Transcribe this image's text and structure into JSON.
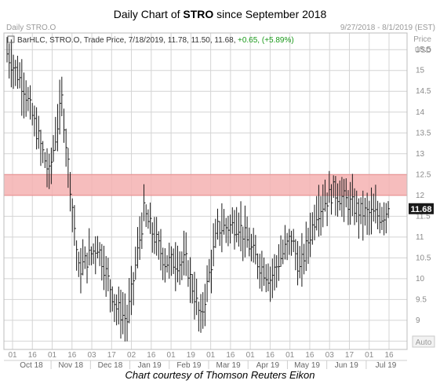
{
  "title": {
    "prefix": "Daily Chart of ",
    "symbol": "STRO",
    "suffix": " since September 2018"
  },
  "caption": "Chart courtesy of Thomson Reuters Eikon",
  "header": {
    "instrument": "Daily STRO.O",
    "date_range": "9/27/2018 - 8/1/2019 (EST)",
    "price_label": "Price",
    "currency_label": "USD",
    "auto_label": "Auto"
  },
  "legend": {
    "text": "BarHLC, STRO.O, Trade Price, 7/18/2019, 11.78, 11.50, 11.68,",
    "change": "+0.65, (+5.89%)"
  },
  "last_price": "11.68",
  "colors": {
    "bars": "#1a1a1a",
    "band": "#f4b2b2",
    "band_edge": "#e88d8d",
    "grid": "#d4d4d4",
    "last_price_bg": "#1a1a1a",
    "last_price_text": "#ffffff",
    "change_text": "#1a9a1a"
  },
  "chart_data": {
    "type": "bar",
    "style": "HLC bars",
    "ylim": [
      8.3,
      15.9
    ],
    "y_ticks": [
      "8.5",
      "9",
      "9.5",
      "10",
      "10.5",
      "11",
      "11.5",
      "12",
      "12.5",
      "13",
      "13.5",
      "14",
      "14.5",
      "15",
      "15.5"
    ],
    "day_ticks": [
      "01",
      "16",
      "01",
      "16",
      "03",
      "17",
      "02",
      "16",
      "01",
      "19",
      "01",
      "16",
      "01",
      "16",
      "01",
      "16",
      "03",
      "17",
      "01",
      "16"
    ],
    "months": [
      "Oct 18",
      "Nov 18",
      "Dec 18",
      "Jan 19",
      "Feb 19",
      "Mar 19",
      "Apr 19",
      "May 19",
      "Jun 19",
      "Jul 19"
    ],
    "resistance_band": [
      12.0,
      12.5
    ],
    "grid": true,
    "segments": [
      {
        "from": 15.5,
        "to": 14.6,
        "bars": 9
      },
      {
        "from": 14.6,
        "to": 12.5,
        "bars": 12
      },
      {
        "from": 12.5,
        "to": 14.3,
        "bars": 6
      },
      {
        "from": 14.3,
        "to": 10.2,
        "bars": 8
      },
      {
        "from": 10.2,
        "to": 10.8,
        "bars": 9
      },
      {
        "from": 10.8,
        "to": 9.3,
        "bars": 9
      },
      {
        "from": 9.3,
        "to": 9.0,
        "bars": 5
      },
      {
        "from": 9.0,
        "to": 11.6,
        "bars": 8
      },
      {
        "from": 11.6,
        "to": 10.4,
        "bars": 10
      },
      {
        "from": 10.4,
        "to": 10.4,
        "bars": 10
      },
      {
        "from": 10.4,
        "to": 9.0,
        "bars": 7
      },
      {
        "from": 9.0,
        "to": 11.2,
        "bars": 8
      },
      {
        "from": 11.2,
        "to": 11.3,
        "bars": 10
      },
      {
        "from": 11.3,
        "to": 10.4,
        "bars": 9
      },
      {
        "from": 10.4,
        "to": 10.0,
        "bars": 6
      },
      {
        "from": 10.0,
        "to": 11.0,
        "bars": 10
      },
      {
        "from": 11.0,
        "to": 10.2,
        "bars": 4
      },
      {
        "from": 10.2,
        "to": 11.6,
        "bars": 8
      },
      {
        "from": 11.6,
        "to": 12.1,
        "bars": 8
      },
      {
        "from": 12.1,
        "to": 11.6,
        "bars": 13
      },
      {
        "from": 11.6,
        "to": 11.5,
        "bars": 10
      },
      {
        "from": 11.5,
        "to": 11.68,
        "bars": 3
      }
    ],
    "last_close": 11.68
  }
}
